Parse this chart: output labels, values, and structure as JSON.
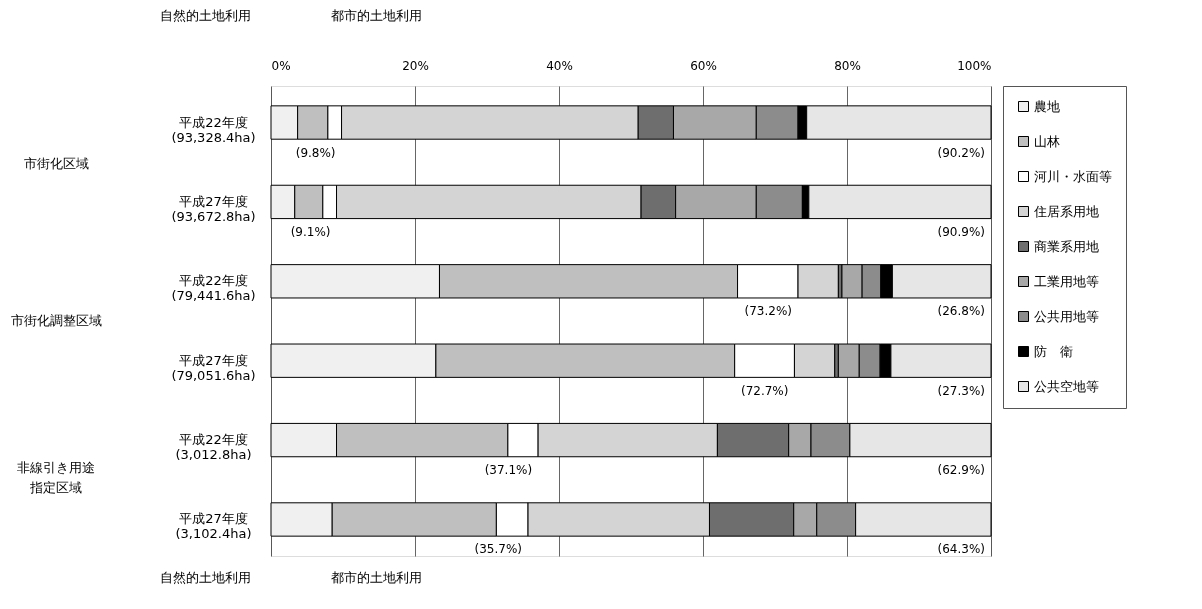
{
  "chart_data": {
    "type": "bar",
    "orientation": "horizontal",
    "stacked": true,
    "grid": "x",
    "legend": "right",
    "categories": [
      "平成22年度\n(93,328.4ha)",
      "平成27年度\n(93,672.8ha)",
      "平成22年度\n(79,441.6ha)",
      "平成27年度\n(79,051.6ha)",
      "平成22年度\n(3,012.8ha)",
      "平成27年度\n(3,102.4ha)"
    ],
    "xlim": [
      0,
      100
    ],
    "xticks": [
      {
        "value": 0,
        "label": "0%"
      },
      {
        "value": 20,
        "label": "20%"
      },
      {
        "value": 40,
        "label": "40%"
      },
      {
        "value": 60,
        "label": "60%"
      },
      {
        "value": 80,
        "label": "80%"
      },
      {
        "value": 100,
        "label": "100%"
      }
    ],
    "series": [
      {
        "name": "農地",
        "color": "#f0f0f0",
        "values": [
          3.7,
          3.3,
          23.4,
          22.9,
          9.1,
          8.5
        ]
      },
      {
        "name": "山林",
        "color": "#bfbfbf",
        "values": [
          4.2,
          3.9,
          41.4,
          41.5,
          23.8,
          22.8
        ]
      },
      {
        "name": "河川・水面等",
        "color": "#ffffff",
        "values": [
          1.9,
          1.9,
          8.4,
          8.3,
          4.2,
          4.4
        ]
      },
      {
        "name": "住居系用地",
        "color": "#d4d4d4",
        "values": [
          41.2,
          42.3,
          5.6,
          5.6,
          24.9,
          25.2
        ]
      },
      {
        "name": "商業系用地",
        "color": "#6e6e6e",
        "values": [
          4.9,
          4.8,
          0.5,
          0.5,
          9.9,
          11.7
        ]
      },
      {
        "name": "工業用地等",
        "color": "#a8a8a8",
        "values": [
          11.5,
          11.2,
          2.8,
          2.9,
          3.1,
          3.2
        ]
      },
      {
        "name": "公共用地等",
        "color": "#8c8c8c",
        "values": [
          5.8,
          6.4,
          2.6,
          2.9,
          5.4,
          5.4
        ]
      },
      {
        "name": "防　衛",
        "color": "#000000",
        "values": [
          1.2,
          0.9,
          1.6,
          1.5,
          null,
          null
        ]
      },
      {
        "name": "公共空地等",
        "color": "#e6e6e6",
        "values": [
          25.6,
          25.3,
          13.7,
          13.9,
          19.6,
          18.8
        ]
      }
    ],
    "annotations": [
      "自然的土地利用",
      "都市的土地利用",
      "自然的土地利用",
      "都市的土地利用",
      "市街化区域",
      "市街化調整区域",
      "非線引き用途",
      "指定区域",
      {
        "text": "(9.8%)",
        "x": 9.8,
        "y": "平成22年度\n(93,328.4ha)"
      },
      {
        "text": "(90.2%)",
        "x": 100,
        "y": "平成22年度\n(93,328.4ha)"
      },
      {
        "text": "(9.1%)",
        "x": 9.1,
        "y": "平成27年度\n(93,672.8ha)"
      },
      {
        "text": "(90.9%)",
        "x": 100,
        "y": "平成27年度\n(93,672.8ha)"
      },
      {
        "text": "(73.2%)",
        "x": 73.2,
        "y": "平成22年度\n(79,441.6ha)"
      },
      {
        "text": "(26.8%)",
        "x": 100,
        "y": "平成22年度\n(79,441.6ha)"
      },
      {
        "text": "(72.7%)",
        "x": 72.7,
        "y": "平成27年度\n(79,051.6ha)"
      },
      {
        "text": "(27.3%)",
        "x": 100,
        "y": "平成27年度\n(79,051.6ha)"
      },
      {
        "text": "(37.1%)",
        "x": 37.1,
        "y": "平成22年度\n(3,012.8ha)"
      },
      {
        "text": "(62.9%)",
        "x": 100,
        "y": "平成22年度\n(3,012.8ha)"
      },
      {
        "text": "(35.7%)",
        "x": 35.7,
        "y": "平成27年度\n(3,102.4ha)"
      },
      {
        "text": "(64.3%)",
        "x": 100,
        "y": "平成27年度\n(3,102.4ha)"
      }
    ]
  }
}
